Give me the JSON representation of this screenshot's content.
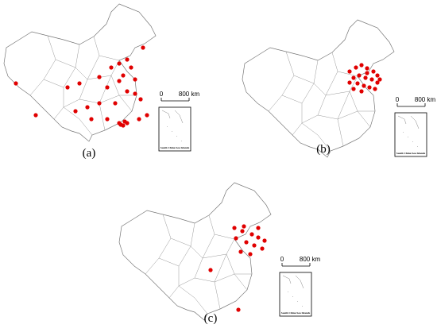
{
  "panels": [
    {
      "label": "(a)",
      "scale_start": "0",
      "scale_end": "800 km",
      "inset_caption": "South China Sea Islands"
    },
    {
      "label": "(b)",
      "scale_start": "0",
      "scale_end": "800 km",
      "inset_caption": "South China Sea Islands"
    },
    {
      "label": "(c)",
      "scale_start": "0",
      "scale_end": "800 km",
      "inset_caption": "South China Sea Islands"
    }
  ]
}
